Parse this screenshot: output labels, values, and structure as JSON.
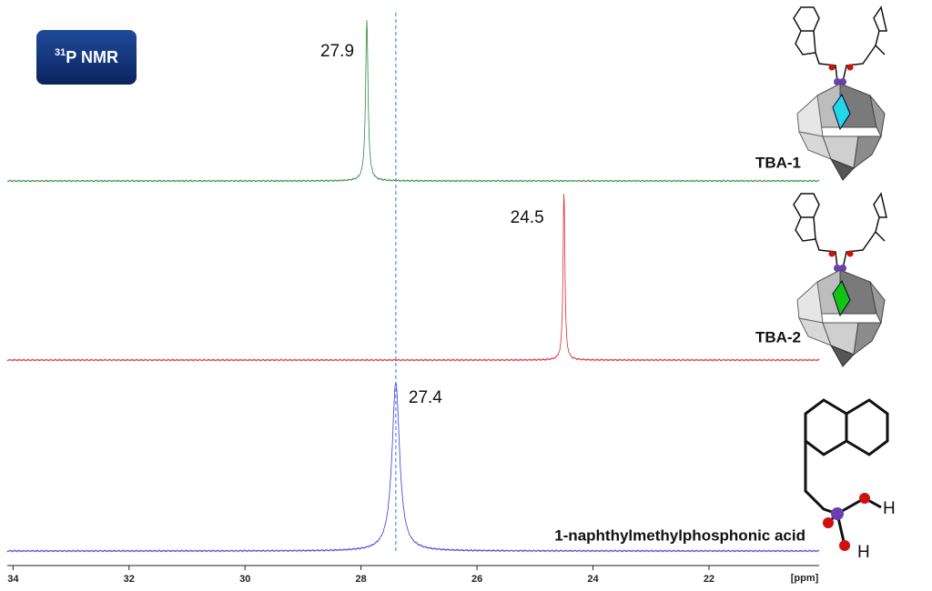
{
  "chart_data": {
    "type": "line",
    "badge": {
      "sup": "31",
      "text": "P NMR"
    },
    "x_label": "[ppm]",
    "xlim": [
      34.1,
      20.1
    ],
    "xticks": [
      34,
      32,
      30,
      28,
      26,
      24,
      22
    ],
    "series": [
      {
        "name": "TBA-1",
        "color": "#2e8b3e",
        "peak": 27.9
      },
      {
        "name": "TBA-2",
        "color": "#e0282e",
        "peak": 24.5
      },
      {
        "name": "1-naphthylmethylphosphonic acid",
        "color": "#3b3bdc",
        "peak": 27.4
      }
    ],
    "reference_line_color": "#4a90d9"
  }
}
